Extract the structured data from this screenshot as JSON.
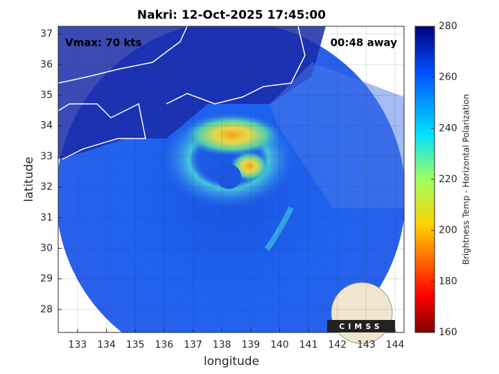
{
  "title": "Nakri: 12-Oct-2025 17:45:00",
  "annotations": {
    "intensity": "Vmax: 70 kts",
    "time_offset": "00:48 away"
  },
  "map": {
    "xlabel": "longitude",
    "ylabel": "latitude",
    "xlim": [
      132.33,
      144.31
    ],
    "ylim": [
      27.25,
      37.25
    ],
    "xticks": [
      133,
      134,
      135,
      136,
      137,
      138,
      139,
      140,
      141,
      142,
      143,
      144
    ],
    "yticks": [
      28,
      29,
      30,
      31,
      32,
      33,
      34,
      35,
      36,
      37
    ]
  },
  "colorbar": {
    "label": "Brightness Temp - Horizontal Polarization",
    "lim": [
      160,
      280
    ],
    "ticks": [
      160,
      180,
      200,
      220,
      240,
      260,
      280
    ]
  },
  "logo": "CIMSS"
}
